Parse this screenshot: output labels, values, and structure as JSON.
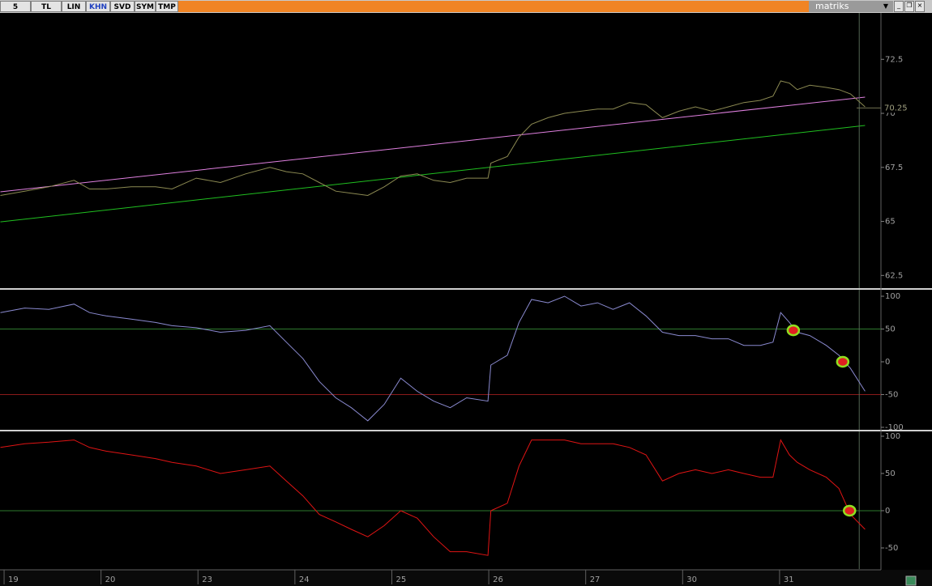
{
  "toolbar": {
    "buttons": [
      "5",
      "TL",
      "LIN",
      "KHN",
      "SVD",
      "SYM",
      "TMP"
    ],
    "active": "KHN",
    "logo": "matriks"
  },
  "chart_data": [
    {
      "type": "line",
      "xlim": [
        -0.084,
        9.004
      ],
      "ylim": [
        61.95,
        74.57
      ],
      "yticks": [
        62.5,
        65,
        67.5,
        70,
        72.5
      ],
      "x": [
        -0.08,
        0.17,
        0.42,
        0.68,
        0.84,
        1.01,
        1.27,
        1.52,
        1.69,
        1.94,
        2.19,
        2.45,
        2.7,
        2.87,
        3.04,
        3.21,
        3.38,
        3.54,
        3.71,
        3.88,
        4.05,
        4.22,
        4.39,
        4.56,
        4.73,
        4.95,
        4.98,
        5.15,
        5.27,
        5.4,
        5.57,
        5.74,
        5.91,
        6.08,
        6.24,
        6.41,
        6.58,
        6.75,
        6.92,
        7.09,
        7.26,
        7.43,
        7.59,
        7.76,
        7.89,
        7.97,
        8.06,
        8.14,
        8.27,
        8.44,
        8.57,
        8.69,
        8.84
      ],
      "series": [
        {
          "color": "#8c8a52",
          "values": [
            66.2,
            66.4,
            66.6,
            66.9,
            66.5,
            66.5,
            66.6,
            66.6,
            66.5,
            67.0,
            66.8,
            67.2,
            67.5,
            67.3,
            67.2,
            66.8,
            66.4,
            66.3,
            66.2,
            66.6,
            67.1,
            67.2,
            66.9,
            66.8,
            67.0,
            67.0,
            67.7,
            68.0,
            68.9,
            69.5,
            69.8,
            70.0,
            70.1,
            70.2,
            70.2,
            70.5,
            70.4,
            69.8,
            70.1,
            70.3,
            70.1,
            70.3,
            70.5,
            70.6,
            70.8,
            71.5,
            71.4,
            71.1,
            71.3,
            71.2,
            71.1,
            70.9,
            70.3
          ]
        }
      ],
      "trendlines": [
        {
          "color": "#e080e0",
          "x": [
            -0.08,
            8.84
          ],
          "values": [
            66.37,
            70.75
          ]
        },
        {
          "color": "#20c020",
          "x": [
            -0.08,
            8.84
          ],
          "values": [
            64.98,
            69.44
          ]
        }
      ],
      "last_value": 70.25,
      "cursor_x": 8.78
    },
    {
      "type": "line",
      "xlim": [
        -0.084,
        9.004
      ],
      "ylim": [
        -102.5,
        107.4
      ],
      "yticks": [
        -100,
        -50,
        0,
        50,
        100
      ],
      "x": [
        -0.08,
        0.17,
        0.42,
        0.68,
        0.84,
        1.01,
        1.27,
        1.52,
        1.69,
        1.94,
        2.19,
        2.45,
        2.7,
        2.87,
        3.04,
        3.21,
        3.38,
        3.54,
        3.71,
        3.88,
        4.05,
        4.22,
        4.39,
        4.56,
        4.73,
        4.95,
        4.98,
        5.15,
        5.27,
        5.4,
        5.57,
        5.74,
        5.91,
        6.08,
        6.24,
        6.41,
        6.58,
        6.75,
        6.92,
        7.09,
        7.26,
        7.43,
        7.59,
        7.76,
        7.89,
        7.97,
        8.06,
        8.14,
        8.27,
        8.44,
        8.57,
        8.69,
        8.84
      ],
      "series": [
        {
          "color": "#8a8ad0",
          "values": [
            75,
            82,
            80,
            88,
            75,
            70,
            65,
            60,
            55,
            52,
            45,
            48,
            55,
            30,
            5,
            -30,
            -55,
            -70,
            -90,
            -65,
            -25,
            -45,
            -60,
            -70,
            -55,
            -60,
            -5,
            10,
            60,
            95,
            90,
            100,
            85,
            90,
            80,
            90,
            70,
            45,
            40,
            40,
            35,
            35,
            25,
            25,
            30,
            75,
            60,
            45,
            40,
            25,
            10,
            -10,
            -45
          ]
        }
      ],
      "hlines": [
        {
          "value": 50,
          "color": "#2e7a2e"
        },
        {
          "value": -50,
          "color": "#8a1a1a"
        }
      ],
      "markers": [
        {
          "x": 8.1,
          "value": 48
        },
        {
          "x": 8.61,
          "value": 0
        }
      ],
      "cursor_x": 8.78
    },
    {
      "type": "line",
      "xlim": [
        -0.084,
        9.004
      ],
      "ylim": [
        -77.2,
        104.3
      ],
      "yticks": [
        -50,
        0,
        50,
        100
      ],
      "x": [
        -0.08,
        0.17,
        0.42,
        0.68,
        0.84,
        1.01,
        1.27,
        1.52,
        1.69,
        1.94,
        2.19,
        2.45,
        2.7,
        2.87,
        3.04,
        3.21,
        3.38,
        3.54,
        3.71,
        3.88,
        4.05,
        4.22,
        4.39,
        4.56,
        4.73,
        4.95,
        4.98,
        5.15,
        5.27,
        5.4,
        5.57,
        5.74,
        5.91,
        6.08,
        6.24,
        6.41,
        6.58,
        6.75,
        6.92,
        7.09,
        7.26,
        7.43,
        7.59,
        7.76,
        7.89,
        7.97,
        8.06,
        8.14,
        8.27,
        8.44,
        8.57,
        8.69,
        8.84
      ],
      "series": [
        {
          "color": "#e01414",
          "values": [
            85,
            90,
            92,
            95,
            85,
            80,
            75,
            70,
            65,
            60,
            50,
            55,
            60,
            40,
            20,
            -5,
            -15,
            -25,
            -35,
            -20,
            0,
            -10,
            -35,
            -55,
            -55,
            -60,
            0,
            10,
            60,
            95,
            95,
            95,
            90,
            90,
            90,
            85,
            75,
            40,
            50,
            55,
            50,
            55,
            50,
            45,
            45,
            95,
            75,
            65,
            55,
            45,
            30,
            -5,
            -25
          ]
        }
      ],
      "hlines": [
        {
          "value": 0,
          "color": "#2e7a2e"
        }
      ],
      "markers": [
        {
          "x": 8.68,
          "value": 0
        }
      ],
      "cursor_x": 8.78,
      "xticks": [
        {
          "value": 0,
          "label": "19"
        },
        {
          "value": 1,
          "label": "20"
        },
        {
          "value": 2,
          "label": "23"
        },
        {
          "value": 3,
          "label": "24"
        },
        {
          "value": 4,
          "label": "25"
        },
        {
          "value": 5,
          "label": "26"
        },
        {
          "value": 6,
          "label": "27"
        },
        {
          "value": 7,
          "label": "30"
        },
        {
          "value": 8,
          "label": "31"
        }
      ]
    }
  ]
}
